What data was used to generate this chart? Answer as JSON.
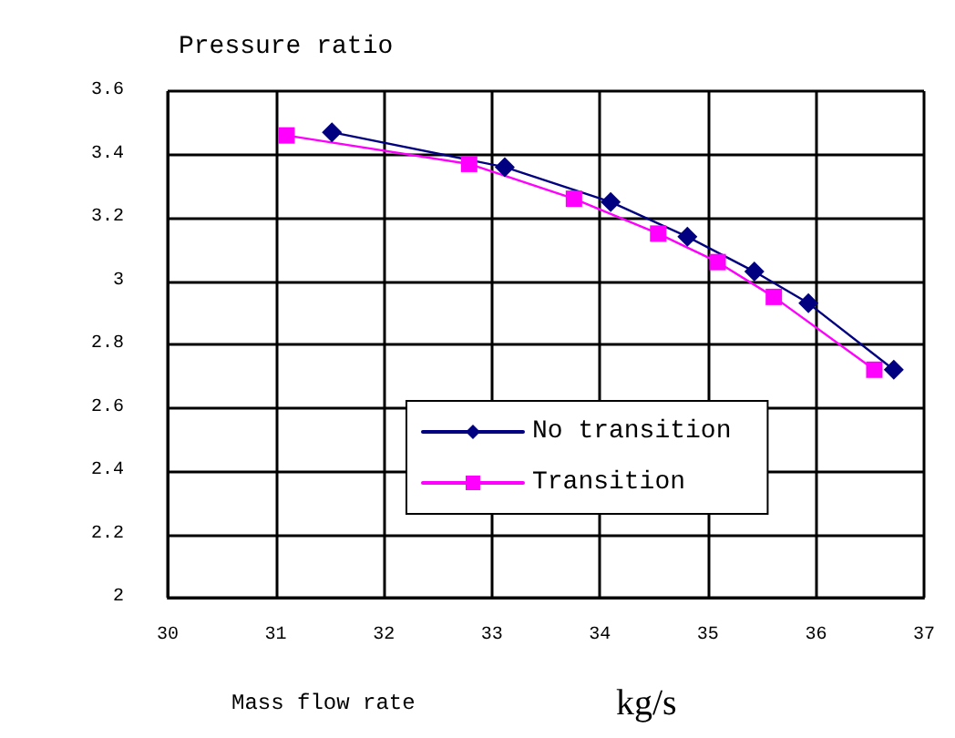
{
  "chart_data": {
    "type": "line",
    "title": "Pressure ratio",
    "xlabel": "Mass flow rate",
    "annotations": [
      "kg/s"
    ],
    "xlim": [
      30,
      37
    ],
    "xticks": [
      30,
      31,
      32,
      33,
      34,
      35,
      36,
      37
    ],
    "ylim": [
      2,
      3.6
    ],
    "yticks": [
      2,
      2.2,
      2.4,
      2.6,
      2.8,
      3,
      3.2,
      3.4,
      3.6
    ],
    "grid": true,
    "legend": "bottom",
    "series": [
      {
        "name": "No transition",
        "color": "#000080",
        "marker": "diamond",
        "x": [
          31.52,
          33.12,
          34.1,
          34.81,
          35.43,
          35.93,
          36.72
        ],
        "values": [
          3.47,
          3.36,
          3.25,
          3.14,
          3.03,
          2.93,
          2.72
        ]
      },
      {
        "name": "Transition",
        "color": "#ff00ff",
        "marker": "square",
        "x": [
          31.1,
          32.79,
          33.76,
          34.54,
          35.09,
          35.61,
          36.54
        ],
        "values": [
          3.46,
          3.37,
          3.26,
          3.15,
          3.06,
          2.95,
          2.72
        ]
      }
    ]
  }
}
